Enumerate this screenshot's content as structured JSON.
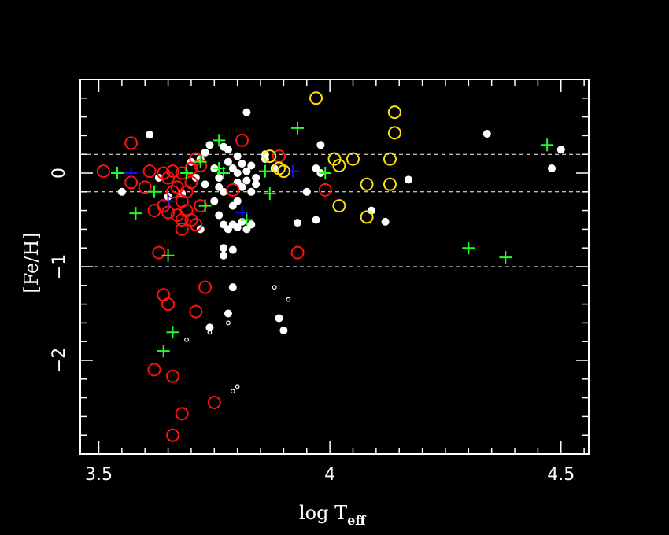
{
  "chart_data": {
    "type": "scatter",
    "xlabel_main": "log T",
    "xlabel_sub": "eff",
    "ylabel": "[Fe/H]",
    "xlim": [
      3.46,
      4.56
    ],
    "ylim": [
      -3.0,
      1.0
    ],
    "x_ticks": [
      3.5,
      4,
      4.5
    ],
    "x_tick_labels": [
      "3.5",
      "4",
      "4.5"
    ],
    "y_ticks": [
      0,
      -1,
      -2
    ],
    "y_tick_labels": [
      "0",
      "−1",
      "−2"
    ],
    "hlines": [
      0.2,
      -0.2,
      -1.0
    ],
    "colors": {
      "background": "#000000",
      "axes": "#ffffff",
      "white": "#ffffff",
      "red": "#ff1010",
      "green": "#20ff20",
      "blue": "#1010ff",
      "yellow": "#ffe000"
    },
    "series": [
      {
        "marker": "filled-circle",
        "color": "white",
        "points": [
          [
            3.55,
            -0.2
          ],
          [
            3.61,
            0.41
          ],
          [
            3.63,
            -0.05
          ],
          [
            3.65,
            -0.25
          ],
          [
            3.68,
            -0.22
          ],
          [
            3.7,
            0.12
          ],
          [
            3.71,
            -0.05
          ],
          [
            3.72,
            0.15
          ],
          [
            3.73,
            0.22
          ],
          [
            3.74,
            0.3
          ],
          [
            3.73,
            -0.12
          ],
          [
            3.75,
            -0.3
          ],
          [
            3.76,
            -0.15
          ],
          [
            3.76,
            -0.45
          ],
          [
            3.77,
            0.28
          ],
          [
            3.78,
            0.25
          ],
          [
            3.78,
            0.12
          ],
          [
            3.79,
            0.05
          ],
          [
            3.8,
            0.18
          ],
          [
            3.8,
            0.0
          ],
          [
            3.8,
            -0.1
          ],
          [
            3.81,
            0.1
          ],
          [
            3.81,
            -0.15
          ],
          [
            3.82,
            0.02
          ],
          [
            3.82,
            -0.08
          ],
          [
            3.83,
            -0.2
          ],
          [
            3.83,
            0.08
          ],
          [
            3.84,
            -0.05
          ],
          [
            3.84,
            -0.12
          ],
          [
            3.75,
            0.05
          ],
          [
            3.76,
            -0.05
          ],
          [
            3.77,
            -0.2
          ],
          [
            3.77,
            -0.55
          ],
          [
            3.78,
            -0.6
          ],
          [
            3.79,
            -0.55
          ],
          [
            3.8,
            -0.58
          ],
          [
            3.81,
            -0.52
          ],
          [
            3.82,
            -0.6
          ],
          [
            3.83,
            -0.55
          ],
          [
            3.77,
            -0.8
          ],
          [
            3.77,
            -0.88
          ],
          [
            3.79,
            -0.82
          ],
          [
            3.72,
            -0.6
          ],
          [
            3.79,
            -1.22
          ],
          [
            3.78,
            -1.5
          ],
          [
            3.74,
            -1.65
          ],
          [
            3.82,
            0.65
          ],
          [
            3.86,
            0.2
          ],
          [
            3.86,
            0.15
          ],
          [
            3.88,
            0.05
          ],
          [
            3.93,
            -0.53
          ],
          [
            3.95,
            -0.2
          ],
          [
            3.97,
            -0.5
          ],
          [
            3.97,
            0.05
          ],
          [
            3.98,
            0.0
          ],
          [
            3.98,
            0.3
          ],
          [
            4.09,
            -0.4
          ],
          [
            4.12,
            -0.52
          ],
          [
            4.17,
            -0.07
          ],
          [
            4.34,
            0.42
          ],
          [
            4.48,
            0.05
          ],
          [
            4.5,
            0.25
          ],
          [
            3.9,
            -1.68
          ],
          [
            3.89,
            -1.55
          ],
          [
            3.79,
            -0.35
          ],
          [
            3.8,
            -0.3
          ]
        ]
      },
      {
        "marker": "small-open-circle",
        "color": "white",
        "points": [
          [
            3.69,
            -1.78
          ],
          [
            3.74,
            -1.7
          ],
          [
            3.78,
            -1.6
          ],
          [
            3.88,
            -1.22
          ],
          [
            3.91,
            -1.35
          ],
          [
            3.79,
            -2.33
          ],
          [
            3.8,
            -2.28
          ]
        ]
      },
      {
        "marker": "open-circle",
        "color": "red",
        "points": [
          [
            3.51,
            0.02
          ],
          [
            3.57,
            0.32
          ],
          [
            3.57,
            -0.1
          ],
          [
            3.6,
            -0.15
          ],
          [
            3.61,
            0.02
          ],
          [
            3.62,
            -0.4
          ],
          [
            3.63,
            -0.85
          ],
          [
            3.64,
            -0.35
          ],
          [
            3.64,
            0.0
          ],
          [
            3.65,
            -0.05
          ],
          [
            3.65,
            -0.42
          ],
          [
            3.66,
            -0.2
          ],
          [
            3.66,
            0.02
          ],
          [
            3.67,
            -0.15
          ],
          [
            3.67,
            -0.45
          ],
          [
            3.68,
            -0.3
          ],
          [
            3.68,
            0.0
          ],
          [
            3.68,
            -0.5
          ],
          [
            3.68,
            -0.6
          ],
          [
            3.69,
            -0.2
          ],
          [
            3.69,
            -0.4
          ],
          [
            3.7,
            0.05
          ],
          [
            3.7,
            -0.5
          ],
          [
            3.7,
            -0.1
          ],
          [
            3.71,
            0.15
          ],
          [
            3.71,
            -0.55
          ],
          [
            3.72,
            -0.35
          ],
          [
            3.72,
            0.08
          ],
          [
            3.73,
            -1.22
          ],
          [
            3.64,
            -1.3
          ],
          [
            3.65,
            -1.4
          ],
          [
            3.71,
            -1.48
          ],
          [
            3.62,
            -2.1
          ],
          [
            3.66,
            -2.17
          ],
          [
            3.68,
            -2.57
          ],
          [
            3.75,
            -2.45
          ],
          [
            3.66,
            -2.8
          ],
          [
            3.79,
            -0.18
          ],
          [
            3.81,
            0.35
          ],
          [
            3.89,
            0.18
          ],
          [
            3.93,
            -0.85
          ],
          [
            3.99,
            -0.18
          ]
        ]
      },
      {
        "marker": "plus",
        "color": "green",
        "points": [
          [
            3.54,
            0.0
          ],
          [
            3.58,
            -0.43
          ],
          [
            3.62,
            -0.2
          ],
          [
            3.65,
            -0.88
          ],
          [
            3.66,
            -1.7
          ],
          [
            3.64,
            -1.9
          ],
          [
            3.69,
            0.0
          ],
          [
            3.72,
            0.12
          ],
          [
            3.73,
            -0.35
          ],
          [
            3.76,
            0.35
          ],
          [
            3.76,
            0.05
          ],
          [
            3.77,
            0.0
          ],
          [
            3.82,
            -0.5
          ],
          [
            3.86,
            0.02
          ],
          [
            3.87,
            -0.22
          ],
          [
            3.93,
            0.48
          ],
          [
            4.3,
            -0.8
          ],
          [
            4.38,
            -0.9
          ],
          [
            4.47,
            0.3
          ],
          [
            3.99,
            0.0
          ]
        ]
      },
      {
        "marker": "plus",
        "color": "blue",
        "points": [
          [
            3.57,
            0.0
          ],
          [
            3.65,
            -0.3
          ],
          [
            3.81,
            -0.42
          ],
          [
            3.92,
            0.02
          ]
        ]
      },
      {
        "marker": "open-circle",
        "color": "yellow",
        "points": [
          [
            3.97,
            0.8
          ],
          [
            4.14,
            0.65
          ],
          [
            4.14,
            0.43
          ],
          [
            3.87,
            0.18
          ],
          [
            3.89,
            0.05
          ],
          [
            3.9,
            0.02
          ],
          [
            4.01,
            0.15
          ],
          [
            4.02,
            0.08
          ],
          [
            4.05,
            0.15
          ],
          [
            4.08,
            -0.12
          ],
          [
            4.13,
            0.15
          ],
          [
            4.13,
            -0.12
          ],
          [
            4.02,
            -0.35
          ],
          [
            4.08,
            -0.47
          ]
        ]
      }
    ]
  }
}
